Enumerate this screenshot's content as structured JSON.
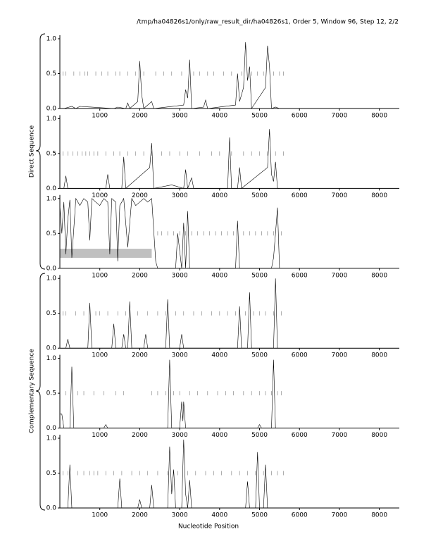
{
  "header": {
    "title": "/tmp/ha04826s1/only/raw_result_dir/ha04826s1, Order 5, Window 96, Step 12, 2/2"
  },
  "side_labels": [
    {
      "label": "Direct Sequence"
    },
    {
      "label": "Complementary Sequence"
    }
  ],
  "chart_data": [
    {
      "type": "line",
      "color": "#000000",
      "xlim": [
        0,
        8500
      ],
      "ylim": [
        0,
        1
      ],
      "xticks": [
        1000,
        2000,
        3000,
        4000,
        5000,
        6000,
        7000,
        8000
      ],
      "yticks": [
        {
          "value": 0,
          "label": "0.0"
        },
        {
          "value": 0.5,
          "label": "0.5"
        },
        {
          "value": 1,
          "label": "1.0"
        }
      ],
      "x": [
        100,
        300,
        400,
        500,
        1350,
        1450,
        1650,
        1700,
        1750,
        1950,
        2000,
        2050,
        2100,
        2300,
        2350,
        3100,
        3150,
        3200,
        3250,
        3300,
        3600,
        3650,
        3700,
        4400,
        4450,
        4500,
        4600,
        4650,
        4700,
        4750,
        4800,
        5150,
        5200,
        5250,
        5300,
        5400,
        5500
      ],
      "values": [
        0,
        0.03,
        0,
        0.03,
        0,
        0.02,
        0,
        0.08,
        0,
        0.1,
        0.68,
        0.2,
        0,
        0.1,
        0,
        0.05,
        0.27,
        0.15,
        0.7,
        0,
        0.02,
        0.12,
        0,
        0.05,
        0.5,
        0.1,
        0.3,
        0.95,
        0.4,
        0.6,
        0,
        0.3,
        0.9,
        0.6,
        0,
        0.02,
        0
      ],
      "markers": {
        "y": 0.5,
        "x": [
          80,
          150,
          350,
          500,
          620,
          700,
          900,
          1050,
          1200,
          1400,
          1500,
          1700,
          1900,
          2100,
          2400,
          2600,
          2800,
          3050,
          3350,
          3500,
          3700,
          3850,
          4100,
          4300,
          4550,
          4800,
          4950,
          5100,
          5350,
          5500,
          5600
        ]
      }
    },
    {
      "type": "line",
      "color": "#000000",
      "xlim": [
        0,
        8500
      ],
      "ylim": [
        0,
        1
      ],
      "xticks": [
        1000,
        2000,
        3000,
        4000,
        5000,
        6000,
        7000,
        8000
      ],
      "yticks": [
        {
          "value": 0,
          "label": "0.0"
        },
        {
          "value": 0.5,
          "label": "0.5"
        },
        {
          "value": 1,
          "label": "1.0"
        }
      ],
      "x": [
        100,
        150,
        200,
        1150,
        1200,
        1250,
        1550,
        1600,
        1650,
        2250,
        2300,
        2350,
        2800,
        3100,
        3150,
        3200,
        3300,
        3350,
        4200,
        4250,
        4300,
        4450,
        4500,
        4550,
        5200,
        5250,
        5300,
        5350,
        5400,
        5450,
        5500
      ],
      "values": [
        0,
        0.18,
        0,
        0,
        0.2,
        0,
        0,
        0.45,
        0,
        0.3,
        0.65,
        0,
        0.05,
        0,
        0.27,
        0,
        0.15,
        0,
        0,
        0.73,
        0,
        0,
        0.3,
        0,
        0.3,
        0.85,
        0.2,
        0.1,
        0.38,
        0,
        0
      ],
      "markers": {
        "y": 0.5,
        "x": [
          80,
          200,
          330,
          450,
          560,
          650,
          750,
          850,
          950,
          1150,
          1350,
          1500,
          1700,
          1900,
          2100,
          2300,
          2550,
          2750,
          3000,
          3200,
          3500,
          3800,
          4000,
          4300,
          4600,
          4800,
          5000,
          5200,
          5400,
          5600
        ]
      }
    },
    {
      "type": "line",
      "color": "#000000",
      "xlim": [
        0,
        8500
      ],
      "ylim": [
        0,
        1
      ],
      "xticks": [
        1000,
        2000,
        3000,
        4000,
        5000,
        6000,
        7000,
        8000
      ],
      "yticks": [
        {
          "value": 0,
          "label": "0.0"
        },
        {
          "value": 0.5,
          "label": "0.5"
        },
        {
          "value": 1,
          "label": "1.0"
        }
      ],
      "x": [
        0,
        50,
        100,
        150,
        200,
        250,
        300,
        400,
        500,
        600,
        700,
        750,
        800,
        900,
        1000,
        1100,
        1200,
        1250,
        1300,
        1400,
        1450,
        1500,
        1600,
        1700,
        1800,
        1900,
        2000,
        2100,
        2200,
        2300,
        2400,
        2450,
        2900,
        2950,
        3050,
        3100,
        3150,
        3200,
        3250,
        4400,
        4450,
        4500,
        5300,
        5350,
        5400,
        5450,
        5500
      ],
      "values": [
        0.9,
        0.5,
        0.95,
        0.2,
        0.7,
        0.98,
        0.15,
        1.0,
        0.9,
        1.0,
        0.95,
        0.4,
        1.0,
        0.95,
        0.9,
        1.0,
        0.95,
        0.2,
        1.0,
        0.95,
        0.1,
        0.9,
        1.0,
        0.3,
        1.0,
        0.9,
        0.95,
        1.0,
        0.95,
        1.0,
        0.1,
        0,
        0,
        0.5,
        0,
        0.65,
        0,
        0.82,
        0,
        0,
        0.68,
        0,
        0,
        0.15,
        0.5,
        0.87,
        0
      ],
      "regions": [
        {
          "start": 0,
          "end": 2300,
          "y0": 0.15,
          "y1": 0.28
        }
      ],
      "markers": {
        "y": 0.5,
        "x": [
          2450,
          2550,
          2700,
          2850,
          3000,
          3150,
          3300,
          3450,
          3600,
          3750,
          3900,
          4050,
          4200,
          4350,
          4600,
          4750,
          4900,
          5050,
          5200,
          5350,
          5550
        ]
      }
    },
    {
      "type": "line",
      "color": "#000000",
      "xlim": [
        0,
        8500
      ],
      "ylim": [
        0,
        1
      ],
      "xticks": [
        1000,
        2000,
        3000,
        4000,
        5000,
        6000,
        7000,
        8000
      ],
      "yticks": [
        {
          "value": 0,
          "label": "0.0"
        },
        {
          "value": 0.5,
          "label": "0.5"
        },
        {
          "value": 1,
          "label": "1.0"
        }
      ],
      "x": [
        150,
        200,
        250,
        700,
        750,
        800,
        1300,
        1350,
        1400,
        1550,
        1600,
        1650,
        1700,
        1750,
        1800,
        2100,
        2150,
        2200,
        2650,
        2700,
        2750,
        3000,
        3050,
        3100,
        4450,
        4500,
        4550,
        4700,
        4750,
        4800,
        5350,
        5400,
        5450
      ],
      "values": [
        0,
        0.13,
        0,
        0,
        0.65,
        0,
        0,
        0.35,
        0,
        0,
        0.2,
        0,
        0,
        0.67,
        0,
        0,
        0.2,
        0,
        0,
        0.7,
        0,
        0,
        0.2,
        0,
        0,
        0.6,
        0,
        0,
        0.8,
        0,
        0,
        1.0,
        0
      ],
      "markers": {
        "y": 0.5,
        "x": [
          80,
          150,
          400,
          600,
          900,
          1000,
          1200,
          1450,
          1650,
          1950,
          2200,
          2450,
          2650,
          2900,
          3100,
          3350,
          3550,
          3800,
          4000,
          4200,
          4400,
          4650,
          4850,
          5000,
          5150,
          5350,
          5550
        ]
      }
    },
    {
      "type": "line",
      "color": "#000000",
      "xlim": [
        0,
        8500
      ],
      "ylim": [
        0,
        1
      ],
      "xticks": [
        1000,
        2000,
        3000,
        4000,
        5000,
        6000,
        7000,
        8000
      ],
      "yticks": [
        {
          "value": 0,
          "label": "0.0"
        },
        {
          "value": 0.5,
          "label": "0.5"
        },
        {
          "value": 1,
          "label": "1.0"
        }
      ],
      "x": [
        0,
        50,
        100,
        250,
        300,
        350,
        1100,
        1150,
        1200,
        2700,
        2750,
        2800,
        3000,
        3050,
        3080,
        3100,
        3150,
        4950,
        5000,
        5050,
        5300,
        5350,
        5400
      ],
      "values": [
        0.2,
        0.2,
        0,
        0,
        0.88,
        0,
        0,
        0.05,
        0,
        0,
        0.98,
        0,
        0,
        0.38,
        0.1,
        0.38,
        0,
        0,
        0.05,
        0,
        0,
        0.98,
        0
      ],
      "markers": {
        "y": 0.5,
        "x": [
          150,
          450,
          600,
          850,
          1100,
          1400,
          1600,
          2300,
          2450,
          2650,
          2850,
          3000,
          3250,
          3450,
          3700,
          3950,
          4150,
          4350,
          4600,
          4800,
          5000,
          5150,
          5300,
          5450,
          5550
        ]
      }
    },
    {
      "type": "line",
      "color": "#000000",
      "xlim": [
        0,
        8500
      ],
      "ylim": [
        0,
        1
      ],
      "xticks": [
        1000,
        2000,
        3000,
        4000,
        5000,
        6000,
        7000,
        8000
      ],
      "yticks": [
        {
          "value": 0,
          "label": "0.0"
        },
        {
          "value": 0.5,
          "label": "0.5"
        },
        {
          "value": 1,
          "label": "1.0"
        }
      ],
      "xlabel": "Nucleotide Position",
      "x": [
        200,
        250,
        300,
        1450,
        1500,
        1550,
        1950,
        2000,
        2050,
        2250,
        2300,
        2350,
        2700,
        2750,
        2800,
        2850,
        2900,
        3050,
        3100,
        3150,
        3200,
        3250,
        3300,
        4650,
        4700,
        4750,
        4900,
        4950,
        5000,
        5100,
        5150,
        5200
      ],
      "values": [
        0,
        0.62,
        0,
        0,
        0.42,
        0,
        0,
        0.12,
        0,
        0,
        0.33,
        0,
        0,
        0.88,
        0.2,
        0.55,
        0,
        0,
        0.98,
        0.2,
        0,
        0.4,
        0,
        0,
        0.38,
        0,
        0,
        0.8,
        0,
        0,
        0.62,
        0
      ],
      "markers": {
        "y": 0.5,
        "x": [
          80,
          200,
          450,
          600,
          750,
          850,
          950,
          1150,
          1350,
          1550,
          1800,
          2000,
          2200,
          2450,
          2700,
          2950,
          3200,
          3400,
          3650,
          3850,
          4050,
          4300,
          4500,
          4700,
          4900,
          5100,
          5300,
          5450,
          5600
        ]
      }
    }
  ]
}
